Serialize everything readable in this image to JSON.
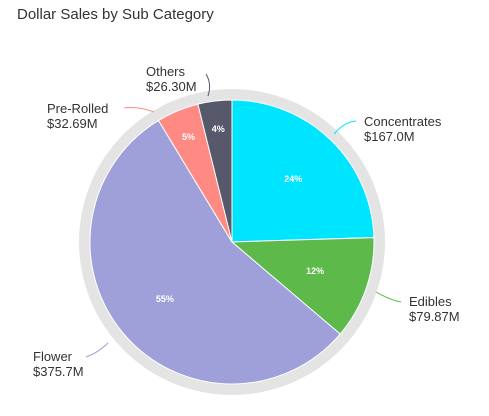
{
  "chart_data": {
    "type": "pie",
    "title": "Dollar Sales by Sub Category",
    "slices": [
      {
        "label": "Concentrates",
        "value_label": "$167.0M",
        "value": 167.0,
        "percent_label": "24%",
        "color": "#00e5ff"
      },
      {
        "label": "Edibles",
        "value_label": "$79.87M",
        "value": 79.87,
        "percent_label": "12%",
        "color": "#5cb94a"
      },
      {
        "label": "Flower",
        "value_label": "$375.7M",
        "value": 375.7,
        "percent_label": "55%",
        "color": "#9f9fd9"
      },
      {
        "label": "Pre-Rolled",
        "value_label": "$32.69M",
        "value": 32.69,
        "percent_label": "5%",
        "color": "#ff8a84"
      },
      {
        "label": "Others",
        "value_label": "$26.30M",
        "value": 26.3,
        "percent_label": "4%",
        "color": "#55596a"
      }
    ],
    "legend": "none",
    "start_angle_deg": 0
  }
}
